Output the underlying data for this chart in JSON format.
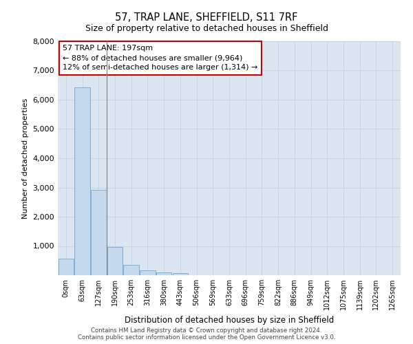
{
  "title1": "57, TRAP LANE, SHEFFIELD, S11 7RF",
  "title2": "Size of property relative to detached houses in Sheffield",
  "xlabel": "Distribution of detached houses by size in Sheffield",
  "ylabel": "Number of detached properties",
  "categories": [
    "0sqm",
    "63sqm",
    "127sqm",
    "190sqm",
    "253sqm",
    "316sqm",
    "380sqm",
    "443sqm",
    "506sqm",
    "569sqm",
    "633sqm",
    "696sqm",
    "759sqm",
    "822sqm",
    "886sqm",
    "949sqm",
    "1012sqm",
    "1075sqm",
    "1139sqm",
    "1202sqm",
    "1265sqm"
  ],
  "values": [
    560,
    6430,
    2920,
    975,
    355,
    170,
    100,
    80,
    0,
    0,
    0,
    0,
    0,
    0,
    0,
    0,
    0,
    0,
    0,
    0,
    0
  ],
  "bar_color": "#c5d8ee",
  "bar_edge_color": "#7bafd4",
  "annotation_line1": "57 TRAP LANE: 197sqm",
  "annotation_line2": "← 88% of detached houses are smaller (9,964)",
  "annotation_line3": "12% of semi-detached houses are larger (1,314) →",
  "annotation_box_color": "#ffffff",
  "annotation_box_edge_color": "#cc0000",
  "vline_color": "#888888",
  "grid_color": "#c8d4e8",
  "plot_bg_color": "#dce6f1",
  "ylim": [
    0,
    8000
  ],
  "yticks": [
    0,
    1000,
    2000,
    3000,
    4000,
    5000,
    6000,
    7000,
    8000
  ],
  "footer1": "Contains HM Land Registry data © Crown copyright and database right 2024.",
  "footer2": "Contains public sector information licensed under the Open Government Licence v3.0."
}
